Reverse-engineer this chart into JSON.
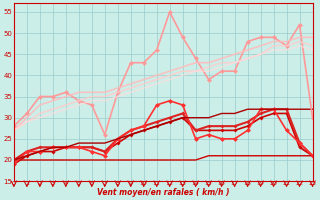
{
  "xlabel": "Vent moyen/en rafales ( km/h )",
  "xlim": [
    0,
    23
  ],
  "ylim": [
    15,
    57
  ],
  "yticks": [
    15,
    20,
    25,
    30,
    35,
    40,
    45,
    50,
    55
  ],
  "xticks": [
    0,
    1,
    2,
    3,
    4,
    5,
    6,
    7,
    8,
    9,
    10,
    11,
    12,
    13,
    14,
    15,
    16,
    17,
    18,
    19,
    20,
    21,
    22,
    23
  ],
  "bg_color": "#cceee8",
  "grid_color": "#99cccc",
  "series": [
    {
      "y": [
        20,
        20,
        20,
        20,
        20,
        20,
        20,
        20,
        20,
        20,
        20,
        20,
        20,
        20,
        20,
        21,
        21,
        21,
        21,
        21,
        21,
        21,
        21,
        21
      ],
      "color": "#cc0000",
      "lw": 1.0,
      "marker": null,
      "ms": 0,
      "alpha": 1.0
    },
    {
      "y": [
        19,
        21,
        22,
        22,
        23,
        23,
        23,
        22,
        24,
        26,
        27,
        28,
        29,
        30,
        27,
        27,
        27,
        27,
        28,
        30,
        31,
        31,
        23,
        21
      ],
      "color": "#cc0000",
      "lw": 1.2,
      "marker": "D",
      "ms": 2.0,
      "alpha": 1.0
    },
    {
      "y": [
        20,
        22,
        23,
        23,
        23,
        23,
        23,
        22,
        25,
        27,
        28,
        29,
        30,
        31,
        27,
        28,
        28,
        28,
        29,
        31,
        32,
        32,
        24,
        21
      ],
      "color": "#dd2222",
      "lw": 1.5,
      "marker": "D",
      "ms": 2.0,
      "alpha": 1.0
    },
    {
      "y": [
        19,
        22,
        22,
        23,
        23,
        23,
        22,
        21,
        25,
        27,
        28,
        33,
        34,
        33,
        25,
        26,
        25,
        25,
        27,
        32,
        32,
        27,
        24,
        21
      ],
      "color": "#ff3030",
      "lw": 1.2,
      "marker": "D",
      "ms": 2.5,
      "alpha": 1.0
    },
    {
      "y": [
        20,
        21,
        22,
        23,
        23,
        24,
        24,
        24,
        25,
        26,
        27,
        28,
        29,
        30,
        30,
        30,
        31,
        31,
        32,
        32,
        32,
        32,
        32,
        32
      ],
      "color": "#aa0000",
      "lw": 1.0,
      "marker": null,
      "ms": 0,
      "alpha": 1.0
    },
    {
      "y": [
        28,
        31,
        35,
        35,
        36,
        34,
        33,
        26,
        36,
        43,
        43,
        46,
        55,
        49,
        44,
        39,
        41,
        41,
        48,
        49,
        49,
        47,
        52,
        30
      ],
      "color": "#ff9999",
      "lw": 1.2,
      "marker": "D",
      "ms": 2.5,
      "alpha": 1.0
    },
    {
      "y": [
        27,
        30,
        33,
        34,
        35,
        36,
        36,
        36,
        37,
        38,
        39,
        40,
        41,
        42,
        43,
        43,
        44,
        45,
        46,
        47,
        48,
        48,
        49,
        49
      ],
      "color": "#ffbbbb",
      "lw": 1.2,
      "marker": null,
      "ms": 0,
      "alpha": 0.85
    },
    {
      "y": [
        27,
        29,
        31,
        32,
        33,
        34,
        35,
        35,
        36,
        37,
        38,
        39,
        40,
        41,
        41,
        42,
        43,
        43,
        44,
        45,
        47,
        47,
        48,
        47
      ],
      "color": "#ffcccc",
      "lw": 1.2,
      "marker": null,
      "ms": 0,
      "alpha": 0.8
    },
    {
      "y": [
        27,
        29,
        30,
        31,
        32,
        33,
        34,
        34,
        35,
        36,
        37,
        38,
        39,
        40,
        41,
        41,
        42,
        43,
        44,
        45,
        46,
        46,
        47,
        46
      ],
      "color": "#ffdddd",
      "lw": 1.0,
      "marker": null,
      "ms": 0,
      "alpha": 0.75
    }
  ]
}
